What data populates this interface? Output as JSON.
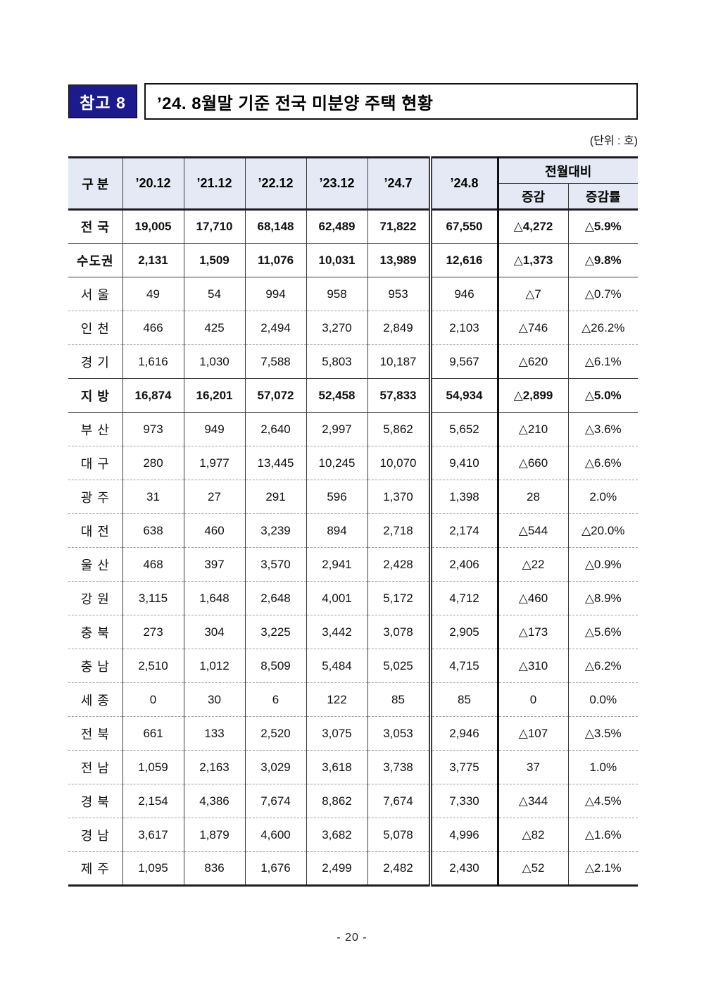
{
  "page": {
    "badge": "참고 8",
    "title": "’24. 8월말 기준 전국 미분양 주택 현황",
    "unit_note": "(단위 : 호)",
    "page_number": "- 20 -"
  },
  "colors": {
    "badge_bg": "#1b1b8e",
    "table_header_bg": "#e4e9f5",
    "border_dark": "#1c1c22"
  },
  "table": {
    "col_headers": [
      "구 분",
      "’20.12",
      "’21.12",
      "’22.12",
      "’23.12",
      "’24.7",
      "’24.8"
    ],
    "mom_header": "전월대비",
    "mom_subheaders": [
      "증감",
      "증감률"
    ],
    "rows": [
      {
        "label": "전 국",
        "bold": true,
        "sep": "solid",
        "values": [
          "19,005",
          "17,710",
          "68,148",
          "62,489",
          "71,822",
          "67,550",
          "△4,272",
          "△5.9%"
        ]
      },
      {
        "label": "수도권",
        "bold": true,
        "sep": "solid",
        "values": [
          "2,131",
          "1,509",
          "11,076",
          "10,031",
          "13,989",
          "12,616",
          "△1,373",
          "△9.8%"
        ]
      },
      {
        "label": "서 울",
        "bold": false,
        "sep": "solid",
        "values": [
          "49",
          "54",
          "994",
          "958",
          "953",
          "946",
          "△7",
          "△0.7%"
        ]
      },
      {
        "label": "인 천",
        "bold": false,
        "sep": "dashed",
        "values": [
          "466",
          "425",
          "2,494",
          "3,270",
          "2,849",
          "2,103",
          "△746",
          "△26.2%"
        ]
      },
      {
        "label": "경 기",
        "bold": false,
        "sep": "dashed",
        "values": [
          "1,616",
          "1,030",
          "7,588",
          "5,803",
          "10,187",
          "9,567",
          "△620",
          "△6.1%"
        ]
      },
      {
        "label": "지 방",
        "bold": true,
        "sep": "solid",
        "values": [
          "16,874",
          "16,201",
          "57,072",
          "52,458",
          "57,833",
          "54,934",
          "△2,899",
          "△5.0%"
        ]
      },
      {
        "label": "부 산",
        "bold": false,
        "sep": "solid",
        "values": [
          "973",
          "949",
          "2,640",
          "2,997",
          "5,862",
          "5,652",
          "△210",
          "△3.6%"
        ]
      },
      {
        "label": "대 구",
        "bold": false,
        "sep": "dashed",
        "values": [
          "280",
          "1,977",
          "13,445",
          "10,245",
          "10,070",
          "9,410",
          "△660",
          "△6.6%"
        ]
      },
      {
        "label": "광 주",
        "bold": false,
        "sep": "dashed",
        "values": [
          "31",
          "27",
          "291",
          "596",
          "1,370",
          "1,398",
          "28",
          "2.0%"
        ]
      },
      {
        "label": "대 전",
        "bold": false,
        "sep": "dashed",
        "values": [
          "638",
          "460",
          "3,239",
          "894",
          "2,718",
          "2,174",
          "△544",
          "△20.0%"
        ]
      },
      {
        "label": "울 산",
        "bold": false,
        "sep": "dashed",
        "values": [
          "468",
          "397",
          "3,570",
          "2,941",
          "2,428",
          "2,406",
          "△22",
          "△0.9%"
        ]
      },
      {
        "label": "강 원",
        "bold": false,
        "sep": "dashed",
        "values": [
          "3,115",
          "1,648",
          "2,648",
          "4,001",
          "5,172",
          "4,712",
          "△460",
          "△8.9%"
        ]
      },
      {
        "label": "충 북",
        "bold": false,
        "sep": "dashed",
        "values": [
          "273",
          "304",
          "3,225",
          "3,442",
          "3,078",
          "2,905",
          "△173",
          "△5.6%"
        ]
      },
      {
        "label": "충 남",
        "bold": false,
        "sep": "dashed",
        "values": [
          "2,510",
          "1,012",
          "8,509",
          "5,484",
          "5,025",
          "4,715",
          "△310",
          "△6.2%"
        ]
      },
      {
        "label": "세 종",
        "bold": false,
        "sep": "dashed",
        "values": [
          "0",
          "30",
          "6",
          "122",
          "85",
          "85",
          "0",
          "0.0%"
        ]
      },
      {
        "label": "전 북",
        "bold": false,
        "sep": "dashed",
        "values": [
          "661",
          "133",
          "2,520",
          "3,075",
          "3,053",
          "2,946",
          "△107",
          "△3.5%"
        ]
      },
      {
        "label": "전 남",
        "bold": false,
        "sep": "dashed",
        "values": [
          "1,059",
          "2,163",
          "3,029",
          "3,618",
          "3,738",
          "3,775",
          "37",
          "1.0%"
        ]
      },
      {
        "label": "경 북",
        "bold": false,
        "sep": "dashed",
        "values": [
          "2,154",
          "4,386",
          "7,674",
          "8,862",
          "7,674",
          "7,330",
          "△344",
          "△4.5%"
        ]
      },
      {
        "label": "경 남",
        "bold": false,
        "sep": "dashed",
        "values": [
          "3,617",
          "1,879",
          "4,600",
          "3,682",
          "5,078",
          "4,996",
          "△82",
          "△1.6%"
        ]
      },
      {
        "label": "제 주",
        "bold": false,
        "sep": "dashed",
        "values": [
          "1,095",
          "836",
          "1,676",
          "2,499",
          "2,482",
          "2,430",
          "△52",
          "△2.1%"
        ]
      }
    ]
  }
}
